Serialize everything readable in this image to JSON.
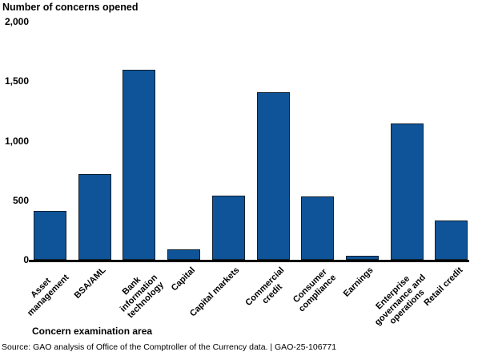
{
  "chart_data": {
    "type": "bar",
    "title": "Number of concerns opened",
    "y_axis_title": "Number of concerns opened",
    "x_axis_title": "Concern examination area",
    "categories": [
      "Asset management",
      "BSA/AML",
      "Bank information technology",
      "Capital",
      "Capital markets",
      "Commercial credit",
      "Consumer compliance",
      "Earnings",
      "Enterprise governance and operations",
      "Retail credit"
    ],
    "category_display_labels": [
      "Asset\nmanagement",
      "BSA/AML",
      "Bank\ninformation\ntechnology",
      "Capital",
      "Capital markets",
      "Commercial\ncredit",
      "Consumer\ncompliance",
      "Earnings",
      "Enterprise\ngovernance and\noperations",
      "Retail credit"
    ],
    "values": [
      410,
      720,
      1595,
      90,
      540,
      1405,
      530,
      35,
      1145,
      330
    ],
    "ylim": [
      0,
      2000
    ],
    "yticks": [
      0,
      500,
      1000,
      1500,
      2000
    ],
    "ytick_labels": [
      "0",
      "500",
      "1,000",
      "1,500",
      "2,000"
    ],
    "grid": false,
    "legend": null,
    "bar_color": "#0F5499",
    "bar_border_color": "#10202E"
  },
  "source_note": "Source: GAO analysis of Office of the Comptroller of the Currency data.  |  GAO-25-106771"
}
